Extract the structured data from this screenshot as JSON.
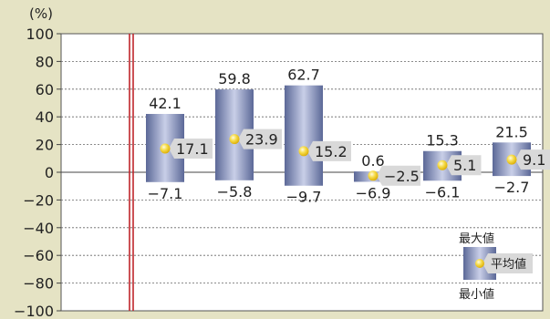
{
  "chart_data": {
    "type": "bar",
    "unit_label": "(%)",
    "ylim": [
      -100,
      100
    ],
    "yticks": [
      100,
      80,
      60,
      40,
      20,
      0,
      -20,
      -40,
      -60,
      -80,
      -100
    ],
    "grid": true,
    "series": [
      {
        "name": "最大値",
        "values": [
          42.1,
          59.8,
          62.7,
          0.6,
          15.3,
          21.5
        ]
      },
      {
        "name": "平均値",
        "values": [
          17.1,
          23.9,
          15.2,
          -2.5,
          5.1,
          9.1
        ]
      },
      {
        "name": "最小値",
        "values": [
          -7.1,
          -5.8,
          -9.7,
          -6.9,
          -6.1,
          -2.7
        ]
      }
    ],
    "legend": {
      "position": "bottom-right",
      "max_label": "最大値",
      "avg_label": "平均値",
      "min_label": "最小値"
    },
    "colors": {
      "bar_dark": "#5b6897",
      "bar_light": "#c9cfe8",
      "dot": "#f2d43a",
      "label_box": "#d9d9d9",
      "separator": "#c0262b",
      "grid": "#555555"
    }
  }
}
